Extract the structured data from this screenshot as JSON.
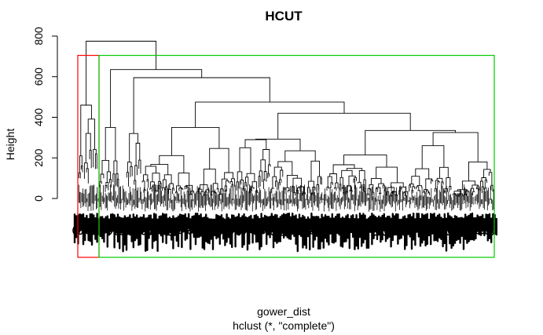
{
  "chart_data": {
    "type": "dendrogram",
    "title": "HCUT",
    "xlabel": "gower_dist",
    "sublabel": "hclust (*, \"complete\")",
    "ylabel": "Height",
    "yticks": [
      0,
      200,
      400,
      600,
      800
    ],
    "ylim": [
      0,
      800
    ],
    "root_height": 775,
    "merges": [
      {
        "name": "root",
        "height": 775,
        "left": "left-group",
        "right": "right-group"
      },
      {
        "name": "left-group",
        "height": 460
      },
      {
        "name": "right-group",
        "height": 635
      },
      {
        "name": "g2",
        "height": 350
      },
      {
        "name": "g3",
        "height": 595
      },
      {
        "name": "g3a",
        "height": 320
      },
      {
        "name": "g4",
        "height": 475
      },
      {
        "name": "g5",
        "height": 350
      },
      {
        "name": "g6",
        "height": 420
      },
      {
        "name": "g7",
        "height": 290
      },
      {
        "name": "g8",
        "height": 235
      },
      {
        "name": "g9",
        "height": 325
      }
    ],
    "clusters": [
      {
        "id": 1,
        "color": "#ff0000",
        "height": 705
      },
      {
        "id": 2,
        "color": "#00cc00",
        "height": 705
      }
    ]
  }
}
